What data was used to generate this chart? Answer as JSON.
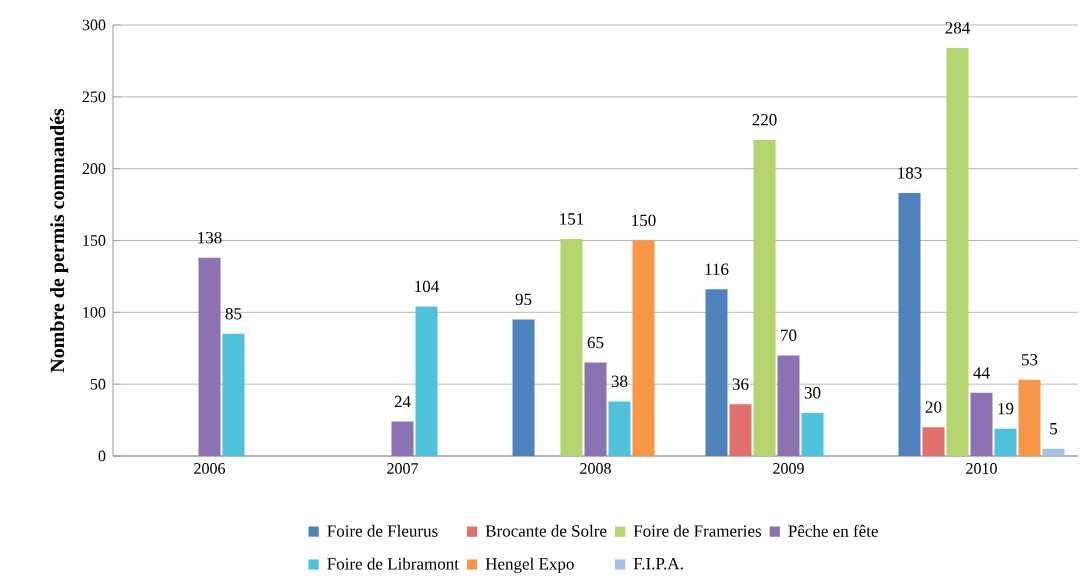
{
  "chart_data": {
    "type": "bar",
    "ylabel": "Nombre  de permis commandés",
    "categories": [
      "2006",
      "2007",
      "2008",
      "2009",
      "2010"
    ],
    "series": [
      {
        "name": "Foire de Fleurus",
        "color": "#4f81bd",
        "values": [
          null,
          null,
          95,
          116,
          183
        ]
      },
      {
        "name": "Brocante de Solre",
        "color": "#e0706c",
        "values": [
          null,
          null,
          null,
          36,
          20
        ]
      },
      {
        "name": "Foire de Frameries",
        "color": "#b3d46e",
        "values": [
          null,
          null,
          151,
          220,
          284
        ]
      },
      {
        "name": "Pêche en fête",
        "color": "#8c72b0",
        "values": [
          138,
          24,
          65,
          70,
          44
        ]
      },
      {
        "name": "Foire de Libramont",
        "color": "#4fc1da",
        "values": [
          85,
          104,
          38,
          30,
          19
        ]
      },
      {
        "name": "Hengel Expo",
        "color": "#f79646",
        "values": [
          null,
          null,
          150,
          null,
          53
        ]
      },
      {
        "name": "F.I.P.A.",
        "color": "#a5c0e6",
        "values": [
          null,
          null,
          null,
          null,
          5
        ]
      }
    ],
    "ylim": [
      0,
      300
    ],
    "yticks": [
      0,
      50,
      100,
      150,
      200,
      250,
      300
    ],
    "grid": "y",
    "legend": "bottom",
    "data_labels": true
  }
}
